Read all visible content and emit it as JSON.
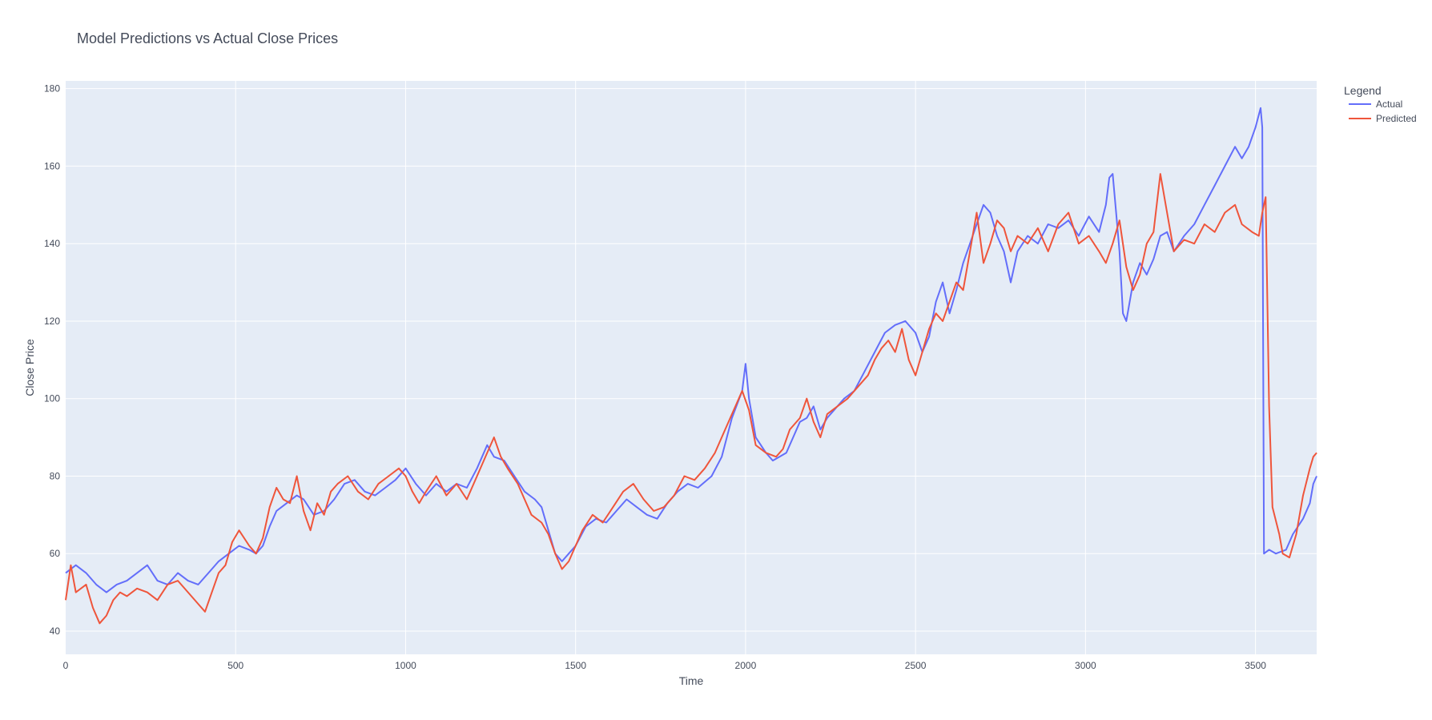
{
  "chart_data": {
    "type": "line",
    "title": "Model Predictions vs Actual Close Prices",
    "xlabel": "Time",
    "ylabel": "Close Price",
    "xlim": [
      0,
      3680
    ],
    "ylim": [
      34,
      182
    ],
    "xticks": [
      0,
      500,
      1000,
      1500,
      2000,
      2500,
      3000,
      3500
    ],
    "yticks": [
      40,
      60,
      80,
      100,
      120,
      140,
      160,
      180
    ],
    "grid": true,
    "legend": {
      "title": "Legend",
      "position": "top-right, outside plot"
    },
    "plot_bg": "#e5ecf6",
    "series": [
      {
        "name": "Actual",
        "color": "#636efa",
        "points": [
          [
            0,
            55
          ],
          [
            30,
            57
          ],
          [
            60,
            55
          ],
          [
            90,
            52
          ],
          [
            120,
            50
          ],
          [
            150,
            52
          ],
          [
            180,
            53
          ],
          [
            210,
            55
          ],
          [
            240,
            57
          ],
          [
            270,
            53
          ],
          [
            300,
            52
          ],
          [
            330,
            55
          ],
          [
            360,
            53
          ],
          [
            390,
            52
          ],
          [
            420,
            55
          ],
          [
            450,
            58
          ],
          [
            480,
            60
          ],
          [
            510,
            62
          ],
          [
            540,
            61
          ],
          [
            560,
            60
          ],
          [
            580,
            62
          ],
          [
            600,
            67
          ],
          [
            620,
            71
          ],
          [
            650,
            73
          ],
          [
            680,
            75
          ],
          [
            700,
            74
          ],
          [
            730,
            70
          ],
          [
            760,
            71
          ],
          [
            790,
            74
          ],
          [
            820,
            78
          ],
          [
            850,
            79
          ],
          [
            880,
            76
          ],
          [
            910,
            75
          ],
          [
            940,
            77
          ],
          [
            970,
            79
          ],
          [
            1000,
            82
          ],
          [
            1030,
            78
          ],
          [
            1060,
            75
          ],
          [
            1090,
            78
          ],
          [
            1120,
            76
          ],
          [
            1150,
            78
          ],
          [
            1180,
            77
          ],
          [
            1210,
            82
          ],
          [
            1240,
            88
          ],
          [
            1260,
            85
          ],
          [
            1290,
            84
          ],
          [
            1320,
            80
          ],
          [
            1350,
            76
          ],
          [
            1380,
            74
          ],
          [
            1400,
            72
          ],
          [
            1420,
            66
          ],
          [
            1440,
            60
          ],
          [
            1460,
            58
          ],
          [
            1480,
            60
          ],
          [
            1500,
            62
          ],
          [
            1530,
            67
          ],
          [
            1560,
            69
          ],
          [
            1590,
            68
          ],
          [
            1620,
            71
          ],
          [
            1650,
            74
          ],
          [
            1680,
            72
          ],
          [
            1710,
            70
          ],
          [
            1740,
            69
          ],
          [
            1770,
            73
          ],
          [
            1800,
            76
          ],
          [
            1830,
            78
          ],
          [
            1860,
            77
          ],
          [
            1900,
            80
          ],
          [
            1930,
            85
          ],
          [
            1960,
            95
          ],
          [
            1990,
            102
          ],
          [
            2000,
            109
          ],
          [
            2010,
            100
          ],
          [
            2030,
            90
          ],
          [
            2060,
            86
          ],
          [
            2080,
            84
          ],
          [
            2100,
            85
          ],
          [
            2120,
            86
          ],
          [
            2140,
            90
          ],
          [
            2160,
            94
          ],
          [
            2180,
            95
          ],
          [
            2200,
            98
          ],
          [
            2220,
            92
          ],
          [
            2240,
            95
          ],
          [
            2260,
            97
          ],
          [
            2290,
            100
          ],
          [
            2320,
            102
          ],
          [
            2350,
            107
          ],
          [
            2380,
            112
          ],
          [
            2410,
            117
          ],
          [
            2440,
            119
          ],
          [
            2470,
            120
          ],
          [
            2500,
            117
          ],
          [
            2520,
            112
          ],
          [
            2540,
            116
          ],
          [
            2560,
            125
          ],
          [
            2580,
            130
          ],
          [
            2600,
            122
          ],
          [
            2620,
            128
          ],
          [
            2640,
            135
          ],
          [
            2660,
            140
          ],
          [
            2680,
            145
          ],
          [
            2700,
            150
          ],
          [
            2720,
            148
          ],
          [
            2740,
            142
          ],
          [
            2760,
            138
          ],
          [
            2780,
            130
          ],
          [
            2800,
            138
          ],
          [
            2830,
            142
          ],
          [
            2860,
            140
          ],
          [
            2890,
            145
          ],
          [
            2920,
            144
          ],
          [
            2950,
            146
          ],
          [
            2980,
            142
          ],
          [
            3010,
            147
          ],
          [
            3040,
            143
          ],
          [
            3060,
            150
          ],
          [
            3070,
            157
          ],
          [
            3080,
            158
          ],
          [
            3090,
            148
          ],
          [
            3100,
            138
          ],
          [
            3110,
            122
          ],
          [
            3120,
            120
          ],
          [
            3140,
            130
          ],
          [
            3160,
            135
          ],
          [
            3180,
            132
          ],
          [
            3200,
            136
          ],
          [
            3220,
            142
          ],
          [
            3240,
            143
          ],
          [
            3260,
            138
          ],
          [
            3290,
            142
          ],
          [
            3320,
            145
          ],
          [
            3350,
            150
          ],
          [
            3380,
            155
          ],
          [
            3410,
            160
          ],
          [
            3440,
            165
          ],
          [
            3460,
            162
          ],
          [
            3480,
            165
          ],
          [
            3500,
            170
          ],
          [
            3515,
            175
          ],
          [
            3520,
            170
          ],
          [
            3525,
            60
          ],
          [
            3540,
            61
          ],
          [
            3560,
            60
          ],
          [
            3590,
            61
          ],
          [
            3610,
            65
          ],
          [
            3640,
            69
          ],
          [
            3660,
            73
          ],
          [
            3670,
            78
          ],
          [
            3680,
            80
          ]
        ]
      },
      {
        "name": "Predicted",
        "color": "#ef553b",
        "points": [
          [
            0,
            48
          ],
          [
            15,
            57
          ],
          [
            30,
            50
          ],
          [
            60,
            52
          ],
          [
            80,
            46
          ],
          [
            100,
            42
          ],
          [
            120,
            44
          ],
          [
            140,
            48
          ],
          [
            160,
            50
          ],
          [
            180,
            49
          ],
          [
            210,
            51
          ],
          [
            240,
            50
          ],
          [
            270,
            48
          ],
          [
            300,
            52
          ],
          [
            330,
            53
          ],
          [
            360,
            50
          ],
          [
            390,
            47
          ],
          [
            410,
            45
          ],
          [
            430,
            50
          ],
          [
            450,
            55
          ],
          [
            470,
            57
          ],
          [
            490,
            63
          ],
          [
            510,
            66
          ],
          [
            540,
            62
          ],
          [
            560,
            60
          ],
          [
            580,
            64
          ],
          [
            600,
            72
          ],
          [
            620,
            77
          ],
          [
            640,
            74
          ],
          [
            660,
            73
          ],
          [
            680,
            80
          ],
          [
            700,
            71
          ],
          [
            720,
            66
          ],
          [
            740,
            73
          ],
          [
            760,
            70
          ],
          [
            780,
            76
          ],
          [
            800,
            78
          ],
          [
            830,
            80
          ],
          [
            860,
            76
          ],
          [
            890,
            74
          ],
          [
            920,
            78
          ],
          [
            950,
            80
          ],
          [
            980,
            82
          ],
          [
            1000,
            80
          ],
          [
            1020,
            76
          ],
          [
            1040,
            73
          ],
          [
            1060,
            76
          ],
          [
            1090,
            80
          ],
          [
            1120,
            75
          ],
          [
            1150,
            78
          ],
          [
            1180,
            74
          ],
          [
            1210,
            80
          ],
          [
            1240,
            86
          ],
          [
            1260,
            90
          ],
          [
            1280,
            85
          ],
          [
            1300,
            82
          ],
          [
            1330,
            78
          ],
          [
            1350,
            74
          ],
          [
            1370,
            70
          ],
          [
            1400,
            68
          ],
          [
            1420,
            65
          ],
          [
            1440,
            60
          ],
          [
            1460,
            56
          ],
          [
            1480,
            58
          ],
          [
            1500,
            62
          ],
          [
            1520,
            66
          ],
          [
            1550,
            70
          ],
          [
            1580,
            68
          ],
          [
            1610,
            72
          ],
          [
            1640,
            76
          ],
          [
            1670,
            78
          ],
          [
            1700,
            74
          ],
          [
            1730,
            71
          ],
          [
            1760,
            72
          ],
          [
            1790,
            75
          ],
          [
            1820,
            80
          ],
          [
            1850,
            79
          ],
          [
            1880,
            82
          ],
          [
            1910,
            86
          ],
          [
            1940,
            92
          ],
          [
            1970,
            98
          ],
          [
            1990,
            102
          ],
          [
            2010,
            97
          ],
          [
            2030,
            88
          ],
          [
            2060,
            86
          ],
          [
            2090,
            85
          ],
          [
            2110,
            87
          ],
          [
            2130,
            92
          ],
          [
            2160,
            95
          ],
          [
            2180,
            100
          ],
          [
            2200,
            94
          ],
          [
            2220,
            90
          ],
          [
            2240,
            96
          ],
          [
            2270,
            98
          ],
          [
            2300,
            100
          ],
          [
            2330,
            103
          ],
          [
            2360,
            106
          ],
          [
            2380,
            110
          ],
          [
            2400,
            113
          ],
          [
            2420,
            115
          ],
          [
            2440,
            112
          ],
          [
            2460,
            118
          ],
          [
            2480,
            110
          ],
          [
            2500,
            106
          ],
          [
            2520,
            112
          ],
          [
            2540,
            118
          ],
          [
            2560,
            122
          ],
          [
            2580,
            120
          ],
          [
            2600,
            125
          ],
          [
            2620,
            130
          ],
          [
            2640,
            128
          ],
          [
            2660,
            138
          ],
          [
            2680,
            148
          ],
          [
            2700,
            135
          ],
          [
            2720,
            140
          ],
          [
            2740,
            146
          ],
          [
            2760,
            144
          ],
          [
            2780,
            138
          ],
          [
            2800,
            142
          ],
          [
            2830,
            140
          ],
          [
            2860,
            144
          ],
          [
            2890,
            138
          ],
          [
            2920,
            145
          ],
          [
            2950,
            148
          ],
          [
            2980,
            140
          ],
          [
            3010,
            142
          ],
          [
            3040,
            138
          ],
          [
            3060,
            135
          ],
          [
            3080,
            140
          ],
          [
            3100,
            146
          ],
          [
            3120,
            134
          ],
          [
            3140,
            128
          ],
          [
            3160,
            132
          ],
          [
            3180,
            140
          ],
          [
            3200,
            143
          ],
          [
            3220,
            158
          ],
          [
            3240,
            148
          ],
          [
            3260,
            138
          ],
          [
            3290,
            141
          ],
          [
            3320,
            140
          ],
          [
            3350,
            145
          ],
          [
            3380,
            143
          ],
          [
            3410,
            148
          ],
          [
            3440,
            150
          ],
          [
            3460,
            145
          ],
          [
            3490,
            143
          ],
          [
            3510,
            142
          ],
          [
            3520,
            148
          ],
          [
            3530,
            152
          ],
          [
            3540,
            98
          ],
          [
            3550,
            72
          ],
          [
            3570,
            65
          ],
          [
            3580,
            60
          ],
          [
            3600,
            59
          ],
          [
            3620,
            65
          ],
          [
            3640,
            75
          ],
          [
            3660,
            82
          ],
          [
            3670,
            85
          ],
          [
            3680,
            86
          ]
        ]
      }
    ]
  }
}
